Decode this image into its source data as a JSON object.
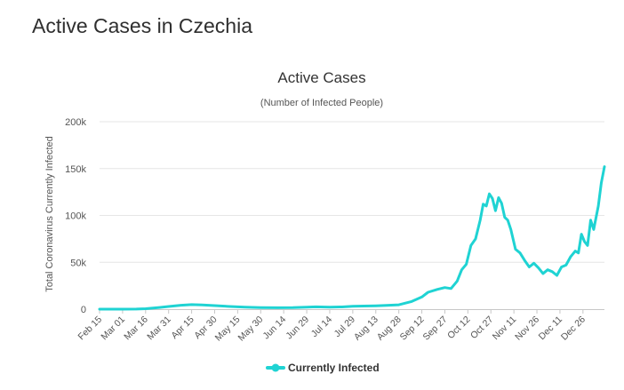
{
  "page": {
    "heading": "Active Cases in Czechia"
  },
  "chart_data": {
    "type": "line",
    "title": "Active Cases",
    "subtitle": "(Number of Infected People)",
    "ylabel": "Total Coronavirus Currently Infected",
    "xlabel": "",
    "ylim": [
      0,
      200000
    ],
    "yticks": [
      0,
      50000,
      100000,
      150000,
      200000
    ],
    "ytick_labels": [
      "0",
      "50k",
      "100k",
      "150k",
      "200k"
    ],
    "xlim": [
      "2020-02-15",
      "2021-01-09"
    ],
    "xtick_dates": [
      "2020-02-15",
      "2020-03-01",
      "2020-03-16",
      "2020-03-31",
      "2020-04-15",
      "2020-04-30",
      "2020-05-15",
      "2020-05-30",
      "2020-06-14",
      "2020-06-29",
      "2020-07-14",
      "2020-07-29",
      "2020-08-13",
      "2020-08-28",
      "2020-09-12",
      "2020-09-27",
      "2020-10-12",
      "2020-10-27",
      "2020-11-11",
      "2020-11-26",
      "2020-12-11",
      "2020-12-26"
    ],
    "xtick_labels": [
      "Feb 15",
      "Mar 01",
      "Mar 16",
      "Mar 31",
      "Apr 15",
      "Apr 30",
      "May 15",
      "May 30",
      "Jun 14",
      "Jun 29",
      "Jul 14",
      "Jul 29",
      "Aug 13",
      "Aug 28",
      "Sep 12",
      "Sep 27",
      "Oct 12",
      "Oct 27",
      "Nov 11",
      "Nov 26",
      "Dec 11",
      "Dec 26"
    ],
    "grid": true,
    "legend_position": "bottom-center",
    "series": [
      {
        "name": "Currently Infected",
        "color": "#1fd3d3",
        "points": [
          [
            "2020-02-15",
            0
          ],
          [
            "2020-03-01",
            0
          ],
          [
            "2020-03-10",
            100
          ],
          [
            "2020-03-16",
            500
          ],
          [
            "2020-03-25",
            1800
          ],
          [
            "2020-03-31",
            2800
          ],
          [
            "2020-04-08",
            4200
          ],
          [
            "2020-04-15",
            4800
          ],
          [
            "2020-04-22",
            4500
          ],
          [
            "2020-04-30",
            3800
          ],
          [
            "2020-05-10",
            2800
          ],
          [
            "2020-05-20",
            2200
          ],
          [
            "2020-05-30",
            1700
          ],
          [
            "2020-06-10",
            1500
          ],
          [
            "2020-06-20",
            1600
          ],
          [
            "2020-06-29",
            2200
          ],
          [
            "2020-07-05",
            2500
          ],
          [
            "2020-07-14",
            2200
          ],
          [
            "2020-07-22",
            2400
          ],
          [
            "2020-07-29",
            3000
          ],
          [
            "2020-08-05",
            3300
          ],
          [
            "2020-08-13",
            3600
          ],
          [
            "2020-08-20",
            4000
          ],
          [
            "2020-08-28",
            4600
          ],
          [
            "2020-09-05",
            8000
          ],
          [
            "2020-09-12",
            13000
          ],
          [
            "2020-09-16",
            18000
          ],
          [
            "2020-09-22",
            21000
          ],
          [
            "2020-09-27",
            23000
          ],
          [
            "2020-10-01",
            22000
          ],
          [
            "2020-10-05",
            30000
          ],
          [
            "2020-10-08",
            42000
          ],
          [
            "2020-10-11",
            48000
          ],
          [
            "2020-10-14",
            68000
          ],
          [
            "2020-10-17",
            75000
          ],
          [
            "2020-10-20",
            95000
          ],
          [
            "2020-10-22",
            112000
          ],
          [
            "2020-10-24",
            110000
          ],
          [
            "2020-10-26",
            123000
          ],
          [
            "2020-10-28",
            118000
          ],
          [
            "2020-10-30",
            105000
          ],
          [
            "2020-11-01",
            119000
          ],
          [
            "2020-11-03",
            113000
          ],
          [
            "2020-11-05",
            98000
          ],
          [
            "2020-11-07",
            95000
          ],
          [
            "2020-11-09",
            85000
          ],
          [
            "2020-11-12",
            64000
          ],
          [
            "2020-11-15",
            60000
          ],
          [
            "2020-11-18",
            52000
          ],
          [
            "2020-11-21",
            45000
          ],
          [
            "2020-11-24",
            49000
          ],
          [
            "2020-11-27",
            44000
          ],
          [
            "2020-11-30",
            38000
          ],
          [
            "2020-12-03",
            42000
          ],
          [
            "2020-12-06",
            40000
          ],
          [
            "2020-12-09",
            36000
          ],
          [
            "2020-12-12",
            45000
          ],
          [
            "2020-12-15",
            47000
          ],
          [
            "2020-12-18",
            56000
          ],
          [
            "2020-12-21",
            62000
          ],
          [
            "2020-12-23",
            60000
          ],
          [
            "2020-12-25",
            80000
          ],
          [
            "2020-12-27",
            72000
          ],
          [
            "2020-12-29",
            68000
          ],
          [
            "2020-12-31",
            95000
          ],
          [
            "2021-01-02",
            85000
          ],
          [
            "2021-01-05",
            110000
          ],
          [
            "2021-01-07",
            135000
          ],
          [
            "2021-01-09",
            152000
          ]
        ]
      }
    ]
  }
}
